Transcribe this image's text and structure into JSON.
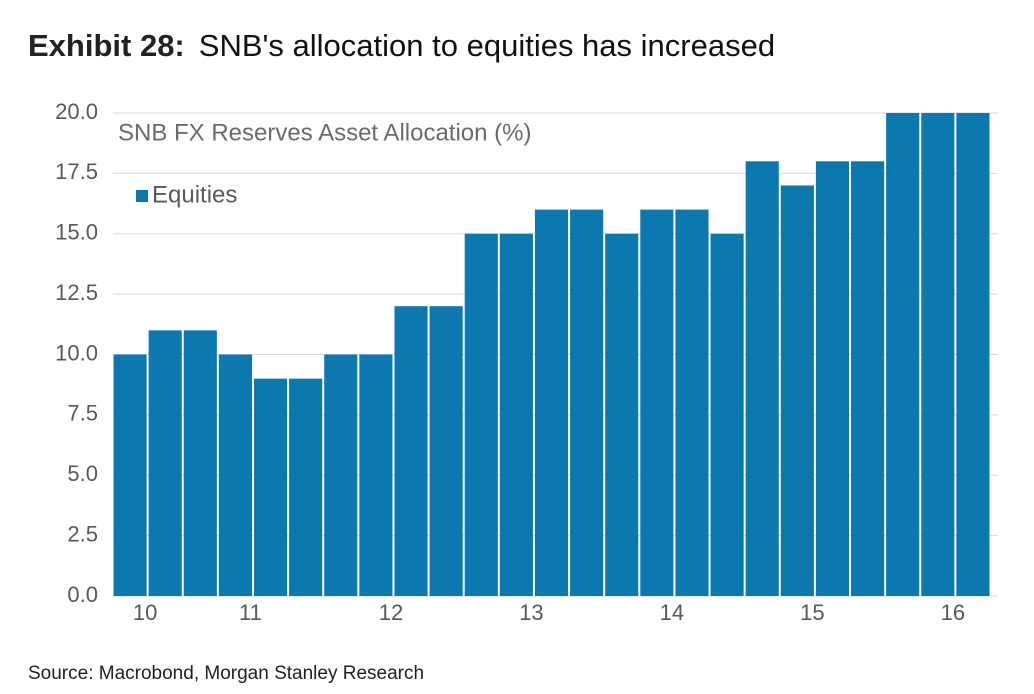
{
  "chart_data": {
    "type": "bar",
    "title_prefix": "Exhibit 28:",
    "title": "SNB's allocation to equities has increased",
    "subtitle": "SNB FX Reserves Asset Allocation (%)",
    "source": "Source: Macrobond, Morgan Stanley Research",
    "categories": [
      null,
      "10",
      null,
      null,
      "11",
      null,
      null,
      null,
      "12",
      null,
      null,
      null,
      "13",
      null,
      null,
      null,
      "14",
      null,
      null,
      null,
      "15",
      null,
      null,
      null,
      "16"
    ],
    "series": [
      {
        "name": "Equities",
        "color": "#0b78b0",
        "values": [
          10,
          11,
          11,
          10,
          9,
          9,
          10,
          10,
          12,
          12,
          15,
          15,
          16,
          16,
          15,
          16,
          16,
          15,
          18,
          17,
          18,
          18,
          20,
          20,
          20
        ]
      }
    ],
    "ylim": [
      0,
      20
    ],
    "yticks": [
      {
        "value": 0,
        "label": "0.0"
      },
      {
        "value": 2.5,
        "label": "2.5"
      },
      {
        "value": 5,
        "label": "5.0"
      },
      {
        "value": 7.5,
        "label": "7.5"
      },
      {
        "value": 10,
        "label": "10.0"
      },
      {
        "value": 12.5,
        "label": "12.5"
      },
      {
        "value": 15,
        "label": "15.0"
      },
      {
        "value": 17.5,
        "label": "17.5"
      },
      {
        "value": 20,
        "label": "20.0"
      }
    ],
    "grid": true,
    "legend": "top-left"
  }
}
